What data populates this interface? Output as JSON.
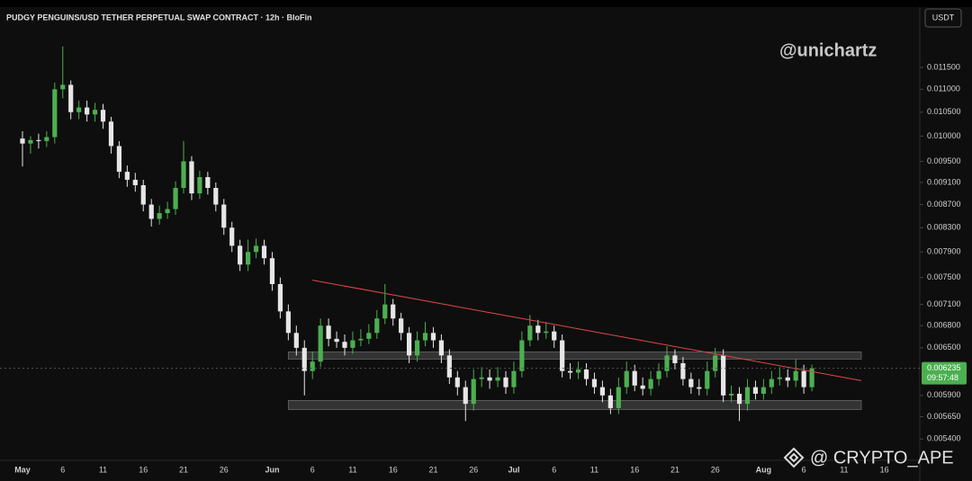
{
  "chart_data": {
    "type": "candlestick",
    "title": "PUDGY PENGUINS/USD TETHER PERPETUAL SWAP CONTRACT · 12h · BloFin",
    "currency": "USDT",
    "watermark": "@unichartz",
    "footer_watermark": "@ CRYPTO_APE",
    "countdown": "09:57:48",
    "log_scale": true,
    "up_color": "#4caf50",
    "down_color": "#e6e6e6",
    "categories": [
      "May",
      null,
      null,
      null,
      null,
      "6",
      null,
      null,
      null,
      null,
      "11",
      null,
      null,
      null,
      null,
      "16",
      null,
      null,
      null,
      null,
      "21",
      null,
      null,
      null,
      null,
      "26",
      null,
      null,
      null,
      null,
      null,
      "Jun",
      null,
      null,
      null,
      null,
      "6",
      null,
      null,
      null,
      null,
      "11",
      null,
      null,
      null,
      null,
      "16",
      null,
      null,
      null,
      null,
      "21",
      null,
      null,
      null,
      null,
      "26",
      null,
      null,
      null,
      null,
      "Jul",
      null,
      null,
      null,
      null,
      "6",
      null,
      null,
      null,
      null,
      "11",
      null,
      null,
      null,
      null,
      "16",
      null,
      null,
      null,
      null,
      "21",
      null,
      null,
      null,
      null,
      "26",
      null,
      null,
      null,
      null,
      null,
      "Aug",
      null,
      null,
      null,
      null,
      "6",
      null,
      null,
      null,
      null,
      "11",
      null,
      null,
      null,
      null,
      "16",
      null
    ],
    "open": [
      0.00995,
      0.00985,
      0.00992,
      0.0099,
      0.00998,
      0.011,
      0.0111,
      0.0105,
      0.0106,
      0.01045,
      0.01055,
      0.0103,
      0.0098,
      0.0093,
      0.00915,
      0.00905,
      0.0087,
      0.00845,
      0.00855,
      0.00862,
      0.009,
      0.0095,
      0.0089,
      0.0092,
      0.009,
      0.0087,
      0.0083,
      0.008,
      0.0077,
      0.0079,
      0.008,
      0.0078,
      0.0074,
      0.007,
      0.0067,
      0.0065,
      0.0062,
      0.00632,
      0.0068,
      0.00662,
      0.00658,
      0.0065,
      0.0066,
      0.00662,
      0.0067,
      0.0069,
      0.0071,
      0.0069,
      0.0067,
      0.0064,
      0.0066,
      0.0067,
      0.0066,
      0.0064,
      0.00612,
      0.006,
      0.0058,
      0.0061,
      0.00612,
      0.00608,
      0.00612,
      0.006,
      0.0062,
      0.0066,
      0.0068,
      0.0067,
      0.00672,
      0.0066,
      0.0062,
      0.00618,
      0.00622,
      0.0061,
      0.006,
      0.0059,
      0.00575,
      0.006,
      0.0062,
      0.00602,
      0.00598,
      0.0061,
      0.0062,
      0.0064,
      0.0063,
      0.0061,
      0.006,
      0.00598,
      0.0062,
      0.0064,
      0.0059,
      0.00592,
      0.0058,
      0.006,
      0.00592,
      0.006,
      0.0061,
      0.00612,
      0.00608,
      0.0062,
      0.006,
      null,
      null,
      null,
      null,
      null,
      null,
      null,
      null,
      null,
      null
    ],
    "high": [
      0.0101,
      0.01,
      0.01005,
      0.0101,
      0.01115,
      0.012,
      0.0112,
      0.01075,
      0.01075,
      0.0107,
      0.01068,
      0.0104,
      0.0099,
      0.00942,
      0.00928,
      0.00915,
      0.0088,
      0.00868,
      0.00875,
      0.00912,
      0.0099,
      0.0096,
      0.00932,
      0.0093,
      0.0091,
      0.0088,
      0.0084,
      0.0081,
      0.0081,
      0.00812,
      0.0081,
      0.0079,
      0.0075,
      0.0071,
      0.0068,
      0.0066,
      0.00645,
      0.0069,
      0.0069,
      0.00672,
      0.00668,
      0.00672,
      0.00675,
      0.00682,
      0.00702,
      0.0074,
      0.00718,
      0.00698,
      0.00678,
      0.00672,
      0.00685,
      0.00678,
      0.00668,
      0.00648,
      0.0062,
      0.00608,
      0.00622,
      0.00625,
      0.00622,
      0.00625,
      0.0062,
      0.00632,
      0.00672,
      0.00695,
      0.00688,
      0.00685,
      0.0068,
      0.00668,
      0.0063,
      0.00632,
      0.0063,
      0.00618,
      0.00608,
      0.00598,
      0.00612,
      0.00632,
      0.00628,
      0.00612,
      0.0062,
      0.0063,
      0.00652,
      0.00648,
      0.00638,
      0.00618,
      0.0061,
      0.00632,
      0.0065,
      0.00648,
      0.00602,
      0.006,
      0.0061,
      0.00608,
      0.0061,
      0.0062,
      0.00625,
      0.00622,
      0.00635,
      0.00628,
      0.00628,
      null,
      null,
      null,
      null,
      null,
      null,
      null,
      null,
      null,
      null
    ],
    "low": [
      0.0094,
      0.00965,
      0.00975,
      0.00978,
      0.00985,
      0.0108,
      0.01035,
      0.01035,
      0.0103,
      0.0103,
      0.01015,
      0.00965,
      0.00918,
      0.00902,
      0.00893,
      0.00858,
      0.00832,
      0.00835,
      0.00845,
      0.00852,
      0.0089,
      0.00878,
      0.0088,
      0.00888,
      0.00858,
      0.00818,
      0.0079,
      0.0076,
      0.0076,
      0.0078,
      0.0077,
      0.0073,
      0.0069,
      0.0066,
      0.0064,
      0.0059,
      0.0061,
      0.00625,
      0.00652,
      0.0065,
      0.0064,
      0.00642,
      0.00652,
      0.00655,
      0.00662,
      0.00682,
      0.0068,
      0.0066,
      0.0063,
      0.00632,
      0.00652,
      0.0065,
      0.0063,
      0.00604,
      0.0059,
      0.0056,
      0.00572,
      0.006,
      0.00598,
      0.006,
      0.00592,
      0.00592,
      0.00612,
      0.00652,
      0.0066,
      0.00662,
      0.0065,
      0.00612,
      0.0061,
      0.0061,
      0.00602,
      0.00592,
      0.00582,
      0.00568,
      0.00568,
      0.00592,
      0.00595,
      0.0059,
      0.0059,
      0.00602,
      0.00612,
      0.00622,
      0.00602,
      0.00592,
      0.0059,
      0.0059,
      0.00612,
      0.00582,
      0.00582,
      0.0056,
      0.00572,
      0.00585,
      0.00585,
      0.00592,
      0.00602,
      0.006,
      0.006,
      0.00592,
      0.00595,
      null,
      null,
      null,
      null,
      null,
      null,
      null,
      null,
      null,
      null
    ],
    "close": [
      0.00985,
      0.00992,
      0.0099,
      0.00998,
      0.011,
      0.0111,
      0.0105,
      0.0106,
      0.01045,
      0.01055,
      0.0103,
      0.0098,
      0.0093,
      0.00915,
      0.00905,
      0.0087,
      0.00845,
      0.00855,
      0.00862,
      0.009,
      0.0095,
      0.0089,
      0.0092,
      0.009,
      0.0087,
      0.0083,
      0.008,
      0.0077,
      0.0079,
      0.008,
      0.0078,
      0.0074,
      0.007,
      0.0067,
      0.0065,
      0.0062,
      0.00632,
      0.0068,
      0.00662,
      0.00658,
      0.0065,
      0.0066,
      0.00662,
      0.0067,
      0.0069,
      0.0071,
      0.0069,
      0.0067,
      0.0064,
      0.0066,
      0.0067,
      0.0066,
      0.0064,
      0.00612,
      0.006,
      0.0058,
      0.0061,
      0.00612,
      0.00608,
      0.00612,
      0.006,
      0.0062,
      0.0066,
      0.0068,
      0.0067,
      0.00672,
      0.0066,
      0.0062,
      0.00618,
      0.00622,
      0.0061,
      0.006,
      0.0059,
      0.00575,
      0.006,
      0.0062,
      0.00602,
      0.00598,
      0.0061,
      0.0062,
      0.0064,
      0.0063,
      0.0061,
      0.006,
      0.00598,
      0.0062,
      0.0064,
      0.0059,
      0.00592,
      0.0058,
      0.006,
      0.00592,
      0.006,
      0.0061,
      0.00612,
      0.00608,
      0.0062,
      0.006,
      0.006235,
      null,
      null,
      null,
      null,
      null,
      null,
      null,
      null,
      null,
      null
    ],
    "zones": [
      {
        "high": 0.006447,
        "low": 0.006353
      },
      {
        "high": 0.00584,
        "low": 0.005733
      }
    ],
    "trendline": [
      0.00746,
      0.00608
    ],
    "ylim": [
      0.00517,
      0.013
    ],
    "yticks": [
      {
        "value": 0.0115,
        "label": "0.011500"
      },
      {
        "value": 0.011,
        "label": "0.011000"
      },
      {
        "value": 0.0105,
        "label": "0.010500"
      },
      {
        "value": 0.01,
        "label": "0.010000"
      },
      {
        "value": 0.0095,
        "label": "0.009500"
      },
      {
        "value": 0.0091,
        "label": "0.009100"
      },
      {
        "value": 0.0087,
        "label": "0.008700"
      },
      {
        "value": 0.0083,
        "label": "0.008300"
      },
      {
        "value": 0.0079,
        "label": "0.007900"
      },
      {
        "value": 0.0075,
        "label": "0.007500"
      },
      {
        "value": 0.0071,
        "label": "0.007100"
      },
      {
        "value": 0.0068,
        "label": "0.006800"
      },
      {
        "value": 0.0065,
        "label": "0.006500"
      },
      {
        "value": 0.0059,
        "label": "0.005900"
      },
      {
        "value": 0.00565,
        "label": "0.005650"
      },
      {
        "value": 0.0054,
        "label": "0.005400"
      }
    ]
  }
}
